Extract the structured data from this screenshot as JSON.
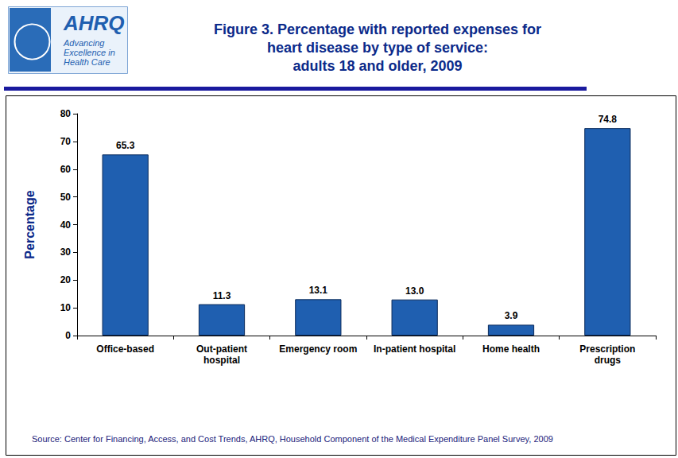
{
  "chart_data": {
    "type": "bar",
    "title": "Figure 3. Percentage with reported expenses for\nheart disease by type of service:\nadults 18 and older, 2009",
    "y_label": "Percentage",
    "categories": [
      "Office-based",
      "Out-patient\nhospital",
      "Emergency room",
      "In-patient hospital",
      "Home health",
      "Prescription\ndrugs"
    ],
    "values": [
      65.3,
      11.3,
      13.1,
      13.0,
      3.9,
      74.8
    ],
    "value_labels": [
      "65.3",
      "11.3",
      "13.1",
      "13.0",
      "3.9",
      "74.8"
    ],
    "color": "#1f5fb0",
    "ylim": [
      0,
      80
    ],
    "yticks": [
      0,
      10,
      20,
      30,
      40,
      50,
      60,
      70,
      80
    ],
    "grid": false,
    "data_labels": true,
    "source": "Source: Center for Financing, Access, and Cost Trends, AHRQ, Household Component of the Medical Expenditure Panel Survey, 2009",
    "annotations": [
      "AHRQ",
      "Advancing\nExcellence in\nHealth Care"
    ]
  }
}
